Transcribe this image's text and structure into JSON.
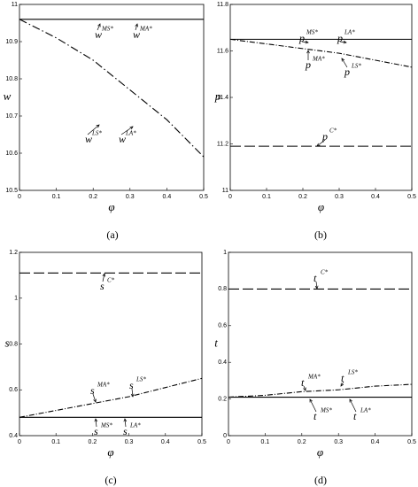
{
  "chart_data": [
    {
      "type": "line",
      "caption": "(a)",
      "x_label": "φ",
      "y_label": "w",
      "x": [
        0,
        0.1,
        0.2,
        0.3,
        0.4,
        0.5
      ],
      "xlim": [
        0,
        0.5
      ],
      "xticks": [
        0,
        0.1,
        0.2,
        0.3,
        0.4,
        0.5
      ],
      "ylim": [
        10.5,
        11
      ],
      "yticks": [
        10.5,
        10.6,
        10.7,
        10.8,
        10.9,
        11
      ],
      "series": [
        {
          "color": "#000000",
          "line_style": "solid",
          "values": [
            10.96,
            10.96,
            10.96,
            10.96,
            10.96,
            10.96
          ]
        },
        {
          "color": "#000000",
          "line_style": "dashed",
          "values": [
            10.96,
            10.91,
            10.85,
            10.77,
            10.69,
            10.59
          ]
        }
      ],
      "annotations": [
        {
          "text": "w",
          "sup": "MS*"
        },
        {
          "text": "w",
          "sup": "MA*"
        },
        {
          "text": "w",
          "sup": "LS*"
        },
        {
          "text": "w",
          "sup": "LA*"
        }
      ]
    },
    {
      "type": "line",
      "caption": "(b)",
      "x_label": "φ",
      "y_label": "p",
      "x": [
        0,
        0.1,
        0.2,
        0.3,
        0.4,
        0.5
      ],
      "xlim": [
        0,
        0.5
      ],
      "xticks": [
        0,
        0.1,
        0.2,
        0.3,
        0.4,
        0.5
      ],
      "ylim": [
        11,
        11.8
      ],
      "yticks": [
        11,
        11.2,
        11.4,
        11.6,
        11.8
      ],
      "series": [
        {
          "color": "#000000",
          "line_style": "solid",
          "values": [
            11.65,
            11.65,
            11.65,
            11.65,
            11.65,
            11.65
          ]
        },
        {
          "color": "#000000",
          "line_style": "dashdot",
          "values": [
            11.65,
            11.63,
            11.61,
            11.59,
            11.56,
            11.53
          ]
        },
        {
          "color": "#000000",
          "line_style": "longdash",
          "values": [
            11.19,
            11.19,
            11.19,
            11.19,
            11.19,
            11.19
          ]
        }
      ],
      "annotations": [
        {
          "text": "p",
          "sup": "MS*"
        },
        {
          "text": "p",
          "sup": "LA*"
        },
        {
          "text": "p",
          "sup": "MA*"
        },
        {
          "text": "p",
          "sup": "LS*"
        },
        {
          "text": "p",
          "sup": "C*"
        }
      ]
    },
    {
      "type": "line",
      "caption": "(c)",
      "x_label": "φ",
      "y_label": "s",
      "x": [
        0,
        0.1,
        0.2,
        0.3,
        0.4,
        0.5
      ],
      "xlim": [
        0,
        0.5
      ],
      "xticks": [
        0,
        0.1,
        0.2,
        0.3,
        0.4,
        0.5
      ],
      "ylim": [
        0.4,
        1.2
      ],
      "yticks": [
        0.4,
        0.6,
        0.8,
        1,
        1.2
      ],
      "series": [
        {
          "color": "#000000",
          "line_style": "longdash",
          "values": [
            1.11,
            1.11,
            1.11,
            1.11,
            1.11,
            1.11
          ]
        },
        {
          "color": "#000000",
          "line_style": "dashdot",
          "values": [
            0.48,
            0.51,
            0.54,
            0.57,
            0.61,
            0.65
          ]
        },
        {
          "color": "#000000",
          "line_style": "solid",
          "values": [
            0.48,
            0.48,
            0.48,
            0.48,
            0.48,
            0.48
          ]
        }
      ],
      "annotations": [
        {
          "text": "s",
          "sup": "C*"
        },
        {
          "text": "s",
          "sup": "MA*"
        },
        {
          "text": "s",
          "sup": "LS*"
        },
        {
          "text": "s",
          "sup": "MS*"
        },
        {
          "text": "s",
          "sup": "LA*"
        }
      ]
    },
    {
      "type": "line",
      "caption": "(d)",
      "x_label": "φ",
      "y_label": "t",
      "x": [
        0,
        0.1,
        0.2,
        0.3,
        0.4,
        0.5
      ],
      "xlim": [
        0,
        0.5
      ],
      "xticks": [
        0,
        0.1,
        0.2,
        0.3,
        0.4,
        0.5
      ],
      "ylim": [
        0,
        1
      ],
      "yticks": [
        0,
        0.2,
        0.4,
        0.6,
        0.8,
        1
      ],
      "series": [
        {
          "color": "#000000",
          "line_style": "longdash",
          "values": [
            0.8,
            0.8,
            0.8,
            0.8,
            0.8,
            0.8
          ]
        },
        {
          "color": "#000000",
          "line_style": "dashdot",
          "values": [
            0.21,
            0.22,
            0.24,
            0.25,
            0.27,
            0.28
          ]
        },
        {
          "color": "#000000",
          "line_style": "solid",
          "values": [
            0.21,
            0.21,
            0.21,
            0.21,
            0.21,
            0.21
          ]
        }
      ],
      "annotations": [
        {
          "text": "t",
          "sup": "C*"
        },
        {
          "text": "t",
          "sup": "MA*"
        },
        {
          "text": "t",
          "sup": "LS*"
        },
        {
          "text": "t",
          "sup": "MS*"
        },
        {
          "text": "t",
          "sup": "LA*"
        }
      ]
    }
  ]
}
